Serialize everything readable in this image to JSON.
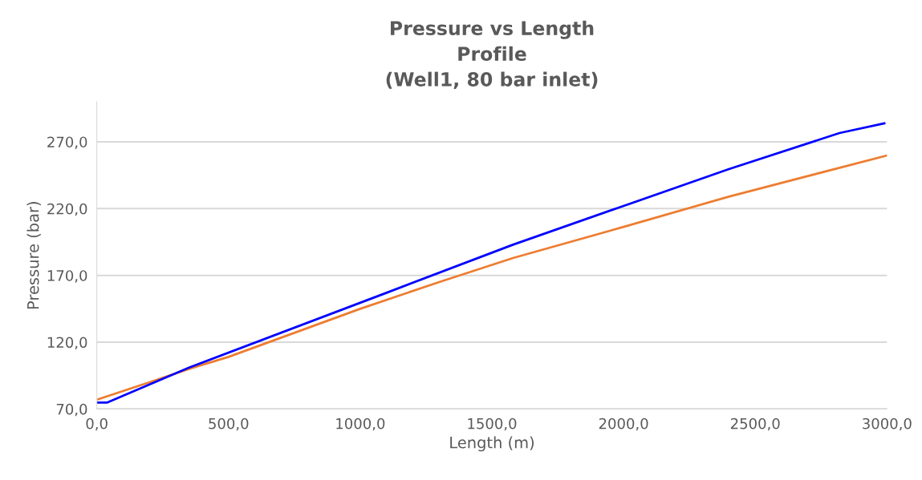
{
  "chart_data": {
    "type": "line",
    "title": "Pressure vs Length\nProfile\n(Well1, 80 bar inlet)",
    "xlabel": "Length (m)",
    "ylabel": "Pressure (bar)",
    "series": [
      {
        "color": "#ed7d31",
        "x": [
          5,
          200,
          350,
          500,
          1000,
          1300,
          1580,
          2000,
          2400,
          3000
        ],
        "values": [
          77.2,
          90,
          100,
          109,
          145,
          165,
          183,
          206.3,
          229,
          259.8
        ]
      },
      {
        "color": "#0000ff",
        "x": [
          0,
          40,
          350,
          1100,
          1580,
          2000,
          2400,
          2820,
          2990
        ],
        "values": [
          74.8,
          74.8,
          101,
          157,
          193,
          222,
          249.6,
          276.6,
          283.8
        ]
      }
    ],
    "xlim": [
      0,
      3000
    ],
    "ylim": [
      70,
      300
    ],
    "xticks": [
      {
        "value": 0,
        "label": "0,0"
      },
      {
        "value": 500,
        "label": "500,0"
      },
      {
        "value": 1000,
        "label": "1000,0"
      },
      {
        "value": 1500,
        "label": "1500,0"
      },
      {
        "value": 2000,
        "label": "2000,0"
      },
      {
        "value": 2500,
        "label": "2500,0"
      },
      {
        "value": 3000,
        "label": "3000,0"
      }
    ],
    "yticks": [
      {
        "value": 70,
        "label": "70,0"
      },
      {
        "value": 120,
        "label": "120,0"
      },
      {
        "value": 170,
        "label": "170,0"
      },
      {
        "value": 220,
        "label": "220,0"
      },
      {
        "value": 270,
        "label": "270,0"
      }
    ],
    "grid": "y"
  }
}
